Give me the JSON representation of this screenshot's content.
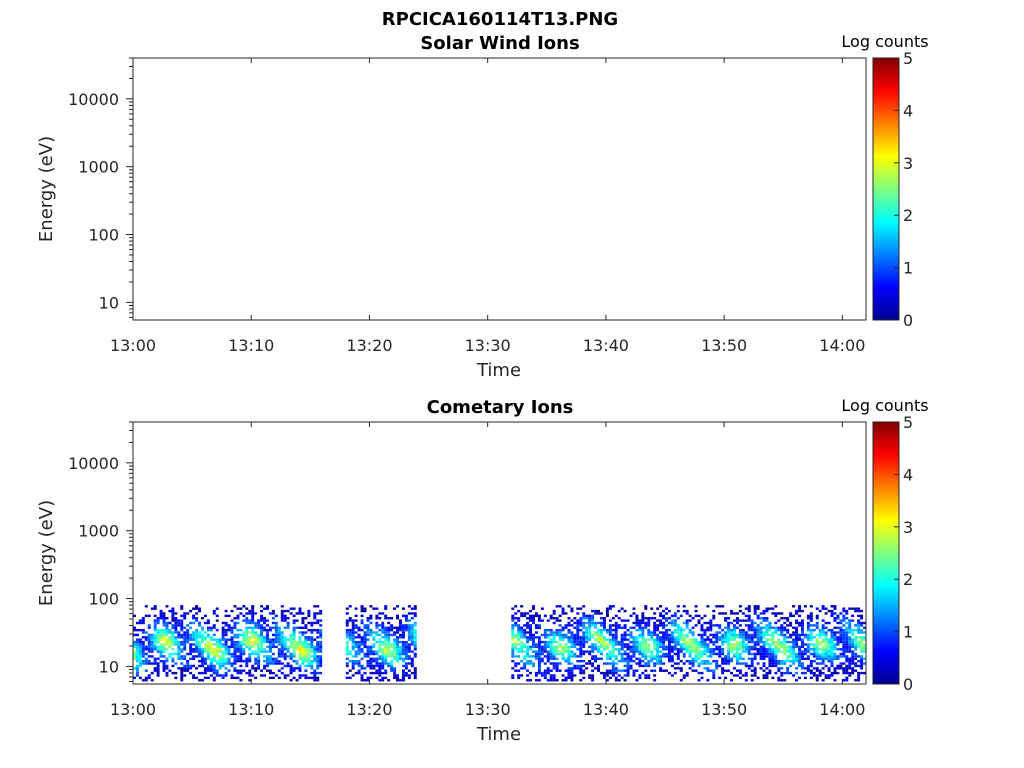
{
  "figure_title": "RPCICA160114T13.PNG",
  "chart_data": [
    {
      "type": "heatmap",
      "title": "Solar Wind Ions",
      "xlabel": "Time",
      "ylabel": "Energy (eV)",
      "x_range": [
        "13:00",
        "14:02"
      ],
      "x_ticks": [
        "13:00",
        "13:10",
        "13:20",
        "13:30",
        "13:40",
        "13:50",
        "14:00"
      ],
      "y_scale": "log",
      "y_range": [
        5.5,
        40000
      ],
      "y_ticks": [
        "10",
        "100",
        "1000",
        "10000"
      ],
      "colorbar": {
        "label": "Log counts",
        "range": [
          0,
          5
        ],
        "ticks": [
          "0",
          "1",
          "2",
          "3",
          "4",
          "5"
        ],
        "colormap": "jet"
      },
      "data_description": "",
      "energy_band_eV": null
    },
    {
      "type": "heatmap",
      "title": "Cometary Ions",
      "xlabel": "Time",
      "ylabel": "Energy (eV)",
      "x_range": [
        "13:00",
        "14:02"
      ],
      "x_ticks": [
        "13:00",
        "13:10",
        "13:20",
        "13:30",
        "13:40",
        "13:50",
        "14:00"
      ],
      "y_scale": "log",
      "y_range": [
        5.5,
        40000
      ],
      "y_ticks": [
        "10",
        "100",
        "1000",
        "10000"
      ],
      "colorbar": {
        "label": "Log counts",
        "range": [
          0,
          5
        ],
        "ticks": [
          "0",
          "1",
          "2",
          "3",
          "4",
          "5"
        ],
        "colormap": "jet"
      },
      "energy_band_eV": [
        6,
        80
      ],
      "activity_intervals": [
        {
          "start": "13:00",
          "end": "13:16",
          "peak_log_counts": 2.8
        },
        {
          "start": "13:18",
          "end": "13:24",
          "peak_log_counts": 2.6
        },
        {
          "start": "13:32",
          "end": "14:02",
          "peak_log_counts": 2.5
        }
      ]
    }
  ]
}
